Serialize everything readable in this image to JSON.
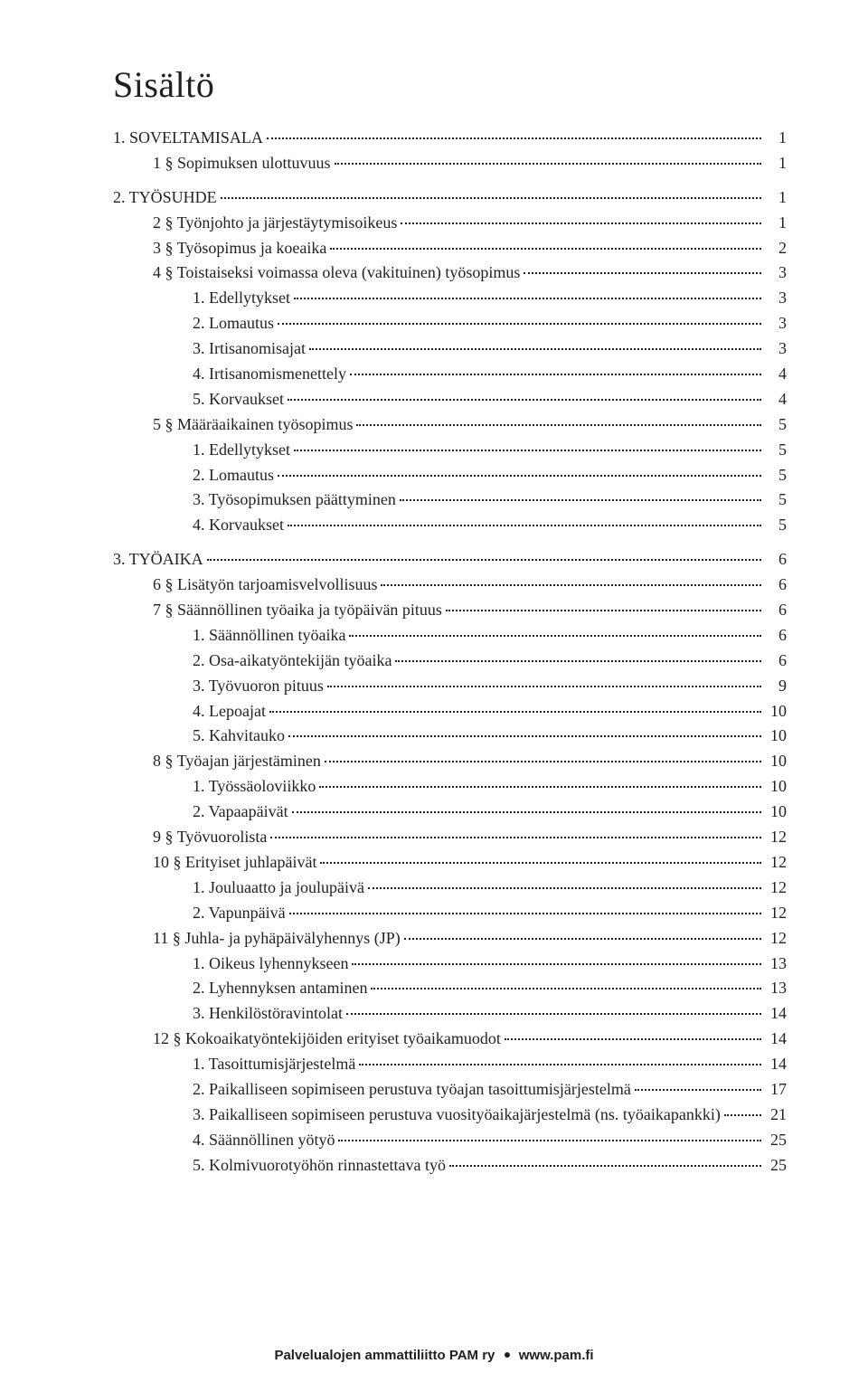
{
  "title": "Sisältö",
  "footer_left": "Palvelualojen ammattiliitto PAM ry",
  "footer_right": "www.pam.fi",
  "entries": [
    {
      "label": "1. SOVELTAMISALA",
      "page": "1",
      "level": 0,
      "spaceBefore": false
    },
    {
      "label": "1 § Sopimuksen ulottuvuus",
      "page": "1",
      "level": 1,
      "spaceBefore": false
    },
    {
      "label": "2. TYÖSUHDE",
      "page": "1",
      "level": 0,
      "spaceBefore": true
    },
    {
      "label": "2 § Työnjohto ja järjestäytymisoikeus",
      "page": "1",
      "level": 1,
      "spaceBefore": false
    },
    {
      "label": "3 § Työsopimus ja koeaika",
      "page": "2",
      "level": 1,
      "spaceBefore": false
    },
    {
      "label": "4 § Toistaiseksi voimassa oleva (vakituinen) työsopimus",
      "page": "3",
      "level": 1,
      "spaceBefore": false
    },
    {
      "label": "1. Edellytykset",
      "page": "3",
      "level": 2,
      "spaceBefore": false
    },
    {
      "label": "2. Lomautus",
      "page": "3",
      "level": 2,
      "spaceBefore": false
    },
    {
      "label": "3. Irtisanomisajat",
      "page": "3",
      "level": 2,
      "spaceBefore": false
    },
    {
      "label": "4. Irtisanomismenettely",
      "page": "4",
      "level": 2,
      "spaceBefore": false
    },
    {
      "label": "5. Korvaukset",
      "page": "4",
      "level": 2,
      "spaceBefore": false
    },
    {
      "label": "5 § Määräaikainen työsopimus",
      "page": "5",
      "level": 1,
      "spaceBefore": false
    },
    {
      "label": "1. Edellytykset",
      "page": "5",
      "level": 2,
      "spaceBefore": false
    },
    {
      "label": "2. Lomautus",
      "page": "5",
      "level": 2,
      "spaceBefore": false
    },
    {
      "label": "3. Työsopimuksen päättyminen",
      "page": "5",
      "level": 2,
      "spaceBefore": false
    },
    {
      "label": "4. Korvaukset",
      "page": "5",
      "level": 2,
      "spaceBefore": false
    },
    {
      "label": "3. TYÖAIKA",
      "page": "6",
      "level": 0,
      "spaceBefore": true
    },
    {
      "label": "6 § Lisätyön tarjoamisvelvollisuus",
      "page": "6",
      "level": 1,
      "spaceBefore": false
    },
    {
      "label": "7 § Säännöllinen työaika ja työpäivän pituus",
      "page": "6",
      "level": 1,
      "spaceBefore": false
    },
    {
      "label": "1. Säännöllinen työaika",
      "page": "6",
      "level": 2,
      "spaceBefore": false
    },
    {
      "label": "2. Osa-aikatyöntekijän työaika",
      "page": "6",
      "level": 2,
      "spaceBefore": false
    },
    {
      "label": "3. Työvuoron pituus",
      "page": "9",
      "level": 2,
      "spaceBefore": false
    },
    {
      "label": "4. Lepoajat",
      "page": "10",
      "level": 2,
      "spaceBefore": false
    },
    {
      "label": "5. Kahvitauko",
      "page": "10",
      "level": 2,
      "spaceBefore": false
    },
    {
      "label": "8 § Työajan järjestäminen",
      "page": "10",
      "level": 1,
      "spaceBefore": false
    },
    {
      "label": "1. Työssäoloviikko",
      "page": "10",
      "level": 2,
      "spaceBefore": false
    },
    {
      "label": "2. Vapaapäivät",
      "page": "10",
      "level": 2,
      "spaceBefore": false
    },
    {
      "label": "9 § Työvuorolista",
      "page": "12",
      "level": 1,
      "spaceBefore": false
    },
    {
      "label": "10 § Erityiset juhlapäivät",
      "page": "12",
      "level": 1,
      "spaceBefore": false
    },
    {
      "label": "1. Jouluaatto ja joulupäivä",
      "page": "12",
      "level": 2,
      "spaceBefore": false
    },
    {
      "label": "2. Vapunpäivä",
      "page": "12",
      "level": 2,
      "spaceBefore": false
    },
    {
      "label": "11 § Juhla- ja pyhäpäivälyhennys (JP)",
      "page": "12",
      "level": 1,
      "spaceBefore": false
    },
    {
      "label": "1. Oikeus lyhennykseen",
      "page": "13",
      "level": 2,
      "spaceBefore": false
    },
    {
      "label": "2. Lyhennyksen antaminen",
      "page": "13",
      "level": 2,
      "spaceBefore": false
    },
    {
      "label": "3. Henkilöstöravintolat",
      "page": "14",
      "level": 2,
      "spaceBefore": false
    },
    {
      "label": "12 § Kokoaikatyöntekijöiden erityiset työaikamuodot",
      "page": "14",
      "level": 1,
      "spaceBefore": false
    },
    {
      "label": "1. Tasoittumisjärjestelmä",
      "page": "14",
      "level": 2,
      "spaceBefore": false
    },
    {
      "label": "2. Paikalliseen sopimiseen perustuva työajan tasoittumisjärjestelmä",
      "page": "17",
      "level": 2,
      "spaceBefore": false
    },
    {
      "label": "3. Paikalliseen sopimiseen perustuva vuosityöaikajärjestelmä (ns. työaikapankki)",
      "page": "21",
      "level": 2,
      "spaceBefore": false
    },
    {
      "label": "4. Säännöllinen yötyö",
      "page": "25",
      "level": 2,
      "spaceBefore": false
    },
    {
      "label": "5. Kolmivuorotyöhön rinnastettava työ",
      "page": "25",
      "level": 2,
      "spaceBefore": false
    }
  ]
}
